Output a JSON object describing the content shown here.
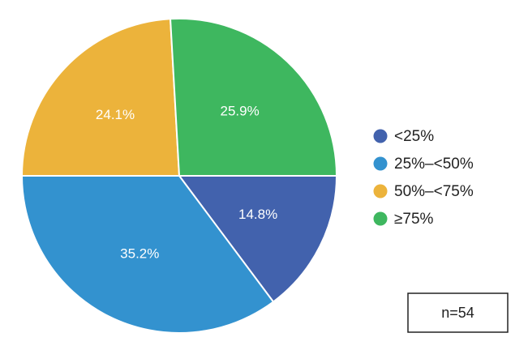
{
  "chart_data": {
    "type": "pie",
    "slices": [
      {
        "label": "<25%",
        "value": 14.8,
        "display": "14.8%",
        "color": "#4262ad"
      },
      {
        "label": "25%–<50%",
        "value": 35.2,
        "display": "35.2%",
        "color": "#3392cf"
      },
      {
        "label": "50%–<75%",
        "value": 24.1,
        "display": "24.1%",
        "color": "#ecb33b"
      },
      {
        "label": "≥75%",
        "value": 25.9,
        "display": "25.9%",
        "color": "#3eb75f"
      }
    ],
    "start_angle_deg": 0,
    "direction": "clockwise",
    "legend_position": "right",
    "annotation": "n=54"
  }
}
